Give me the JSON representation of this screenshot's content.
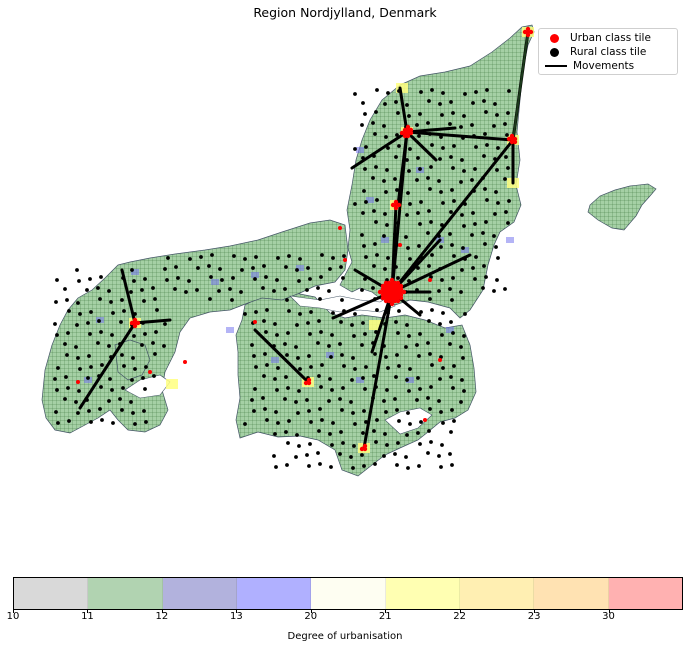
{
  "title": "Region Nordjylland, Denmark",
  "legend": {
    "items": [
      {
        "label": "Urban class tile",
        "color": "#ff0000"
      },
      {
        "label": "Rural class tile",
        "color": "#000000"
      },
      {
        "label": "Movements",
        "color": "#000000"
      }
    ]
  },
  "colorbar": {
    "label": "Degree of urbanisation",
    "ticks": [
      "10",
      "11",
      "12",
      "13",
      "20",
      "21",
      "22",
      "23",
      "30"
    ],
    "colors": [
      "#d9d9d9",
      "#b1d3b1",
      "#b2b2dd",
      "#b0b0ff",
      "#fefef2",
      "#ffffb2",
      "#ffefb2",
      "#ffe2b2",
      "#ffb1b1"
    ]
  },
  "map": {
    "land_color": "#9ccc9c",
    "grid_color": "#2f6b2f",
    "mover_color": "#000000",
    "urban_color": "#ff0000",
    "highlight_color": "#ffff80"
  }
}
